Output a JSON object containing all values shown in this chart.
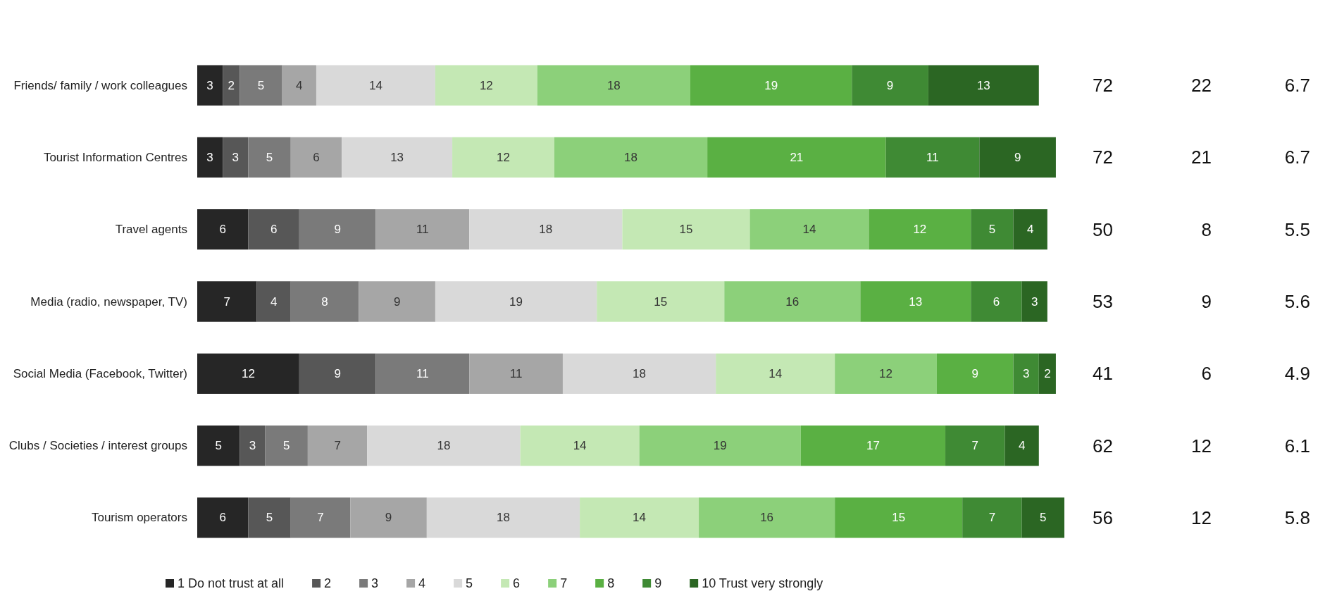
{
  "chart_data": {
    "type": "bar",
    "orientation": "horizontal",
    "stacked": true,
    "data_labels": true,
    "legend": "bottom",
    "tick_labels": "y",
    "categories": [
      "Friends/ family / work colleagues",
      "Tourist Information Centres",
      "Travel agents",
      "Media (radio, newspaper, TV)",
      "Social Media (Facebook, Twitter)",
      "Clubs / Societies / interest groups",
      "Tourism operators"
    ],
    "series": [
      {
        "name": "1 Do not trust at all",
        "color": "#262626",
        "values": [
          3,
          3,
          6,
          7,
          12,
          5,
          6
        ]
      },
      {
        "name": "2",
        "color": "#575757",
        "values": [
          2,
          3,
          6,
          4,
          9,
          3,
          5
        ]
      },
      {
        "name": "3",
        "color": "#7a7a7a",
        "values": [
          5,
          5,
          9,
          8,
          11,
          5,
          7
        ]
      },
      {
        "name": "4",
        "color": "#a6a6a6",
        "values": [
          4,
          6,
          11,
          9,
          11,
          7,
          9
        ]
      },
      {
        "name": "5",
        "color": "#d9d9d9",
        "values": [
          14,
          13,
          18,
          19,
          18,
          18,
          18
        ]
      },
      {
        "name": "6",
        "color": "#c4e8b4",
        "values": [
          12,
          12,
          15,
          15,
          14,
          14,
          14
        ]
      },
      {
        "name": "7",
        "color": "#8cd07a",
        "values": [
          18,
          18,
          14,
          16,
          12,
          19,
          16
        ]
      },
      {
        "name": "8",
        "color": "#5ab043",
        "values": [
          19,
          21,
          12,
          13,
          9,
          17,
          15
        ]
      },
      {
        "name": "9",
        "color": "#3f8a34",
        "values": [
          9,
          11,
          5,
          6,
          3,
          7,
          7
        ]
      },
      {
        "name": "10 Trust very strongly",
        "color": "#2b6623",
        "values": [
          13,
          9,
          4,
          3,
          2,
          4,
          5
        ]
      }
    ],
    "annotations": [
      "72",
      "22",
      "6.7",
      "72",
      "21",
      "6.7",
      "50",
      "8",
      "5.5",
      "53",
      "9",
      "5.6",
      "41",
      "6",
      "4.9",
      "62",
      "12",
      "6.1",
      "56",
      "12",
      "5.8"
    ]
  }
}
